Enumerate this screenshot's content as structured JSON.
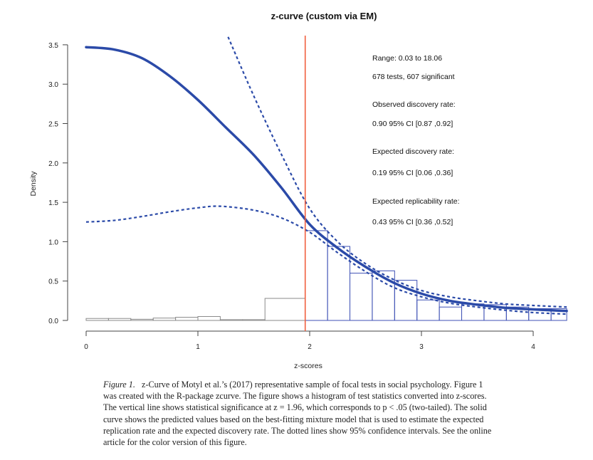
{
  "chart_data": {
    "type": "bar",
    "title": "z-curve (custom via EM)",
    "xlabel": "z-scores",
    "ylabel": "Density",
    "xlim": [
      0,
      4.3
    ],
    "ylim": [
      0,
      3.5
    ],
    "xticks": [
      "0",
      "1",
      "2",
      "3",
      "4"
    ],
    "yticks": [
      "0.0",
      "0.5",
      "1.0",
      "1.5",
      "2.0",
      "2.5",
      "3.0",
      "3.5"
    ],
    "grid": false,
    "significance_line": {
      "z": 1.96,
      "color": "#f0603f"
    },
    "histogram_nonsignificant": {
      "color": "#8a8a8a",
      "bins": [
        [
          0,
          0.2
        ],
        [
          0.2,
          0.4
        ],
        [
          0.4,
          0.6
        ],
        [
          0.6,
          0.8
        ],
        [
          0.8,
          1.0
        ],
        [
          1.0,
          1.2
        ],
        [
          1.2,
          1.4
        ],
        [
          1.4,
          1.6
        ],
        [
          1.6,
          1.96
        ]
      ],
      "values": [
        0.025,
        0.025,
        0.015,
        0.03,
        0.04,
        0.05,
        0.01,
        0.01,
        0.28
      ]
    },
    "histogram_significant": {
      "color": "#3f51b5",
      "bins": [
        [
          1.96,
          2.16
        ],
        [
          2.16,
          2.36
        ],
        [
          2.36,
          2.56
        ],
        [
          2.56,
          2.76
        ],
        [
          2.76,
          2.96
        ],
        [
          2.96,
          3.16
        ],
        [
          3.16,
          3.36
        ],
        [
          3.36,
          3.56
        ],
        [
          3.56,
          3.76
        ],
        [
          3.76,
          3.96
        ],
        [
          3.96,
          4.16
        ],
        [
          4.16,
          4.36
        ]
      ],
      "values": [
        1.14,
        0.94,
        0.6,
        0.63,
        0.51,
        0.26,
        0.17,
        0.21,
        0.2,
        0.17,
        0.15,
        0.15
      ]
    },
    "series": [
      {
        "style": "solid",
        "color": "#2b4aa8",
        "x": [
          0,
          0.25,
          0.5,
          0.75,
          1.0,
          1.25,
          1.5,
          1.75,
          2.0,
          2.25,
          2.5,
          2.75,
          3.0,
          3.25,
          3.5,
          3.75,
          4.0,
          4.3
        ],
        "y": [
          3.47,
          3.44,
          3.33,
          3.1,
          2.8,
          2.45,
          2.1,
          1.68,
          1.22,
          0.92,
          0.68,
          0.48,
          0.34,
          0.25,
          0.2,
          0.16,
          0.14,
          0.12
        ]
      },
      {
        "style": "dotted",
        "color": "#2b4aa8",
        "x": [
          1.27,
          1.5,
          1.75,
          2.0,
          2.25,
          2.5,
          2.75,
          3.0,
          3.25,
          3.5,
          3.75,
          4.0,
          4.3
        ],
        "y": [
          3.6,
          2.85,
          2.1,
          1.42,
          1.0,
          0.72,
          0.52,
          0.38,
          0.3,
          0.25,
          0.21,
          0.19,
          0.17
        ]
      },
      {
        "style": "dotted",
        "color": "#2b4aa8",
        "x": [
          0,
          0.25,
          0.5,
          0.75,
          1.0,
          1.2,
          1.5,
          1.75,
          2.0,
          2.25,
          2.5,
          2.75,
          3.0,
          3.25,
          3.5,
          3.75,
          4.0,
          4.3
        ],
        "y": [
          1.25,
          1.27,
          1.32,
          1.38,
          1.43,
          1.45,
          1.4,
          1.3,
          1.12,
          0.86,
          0.62,
          0.42,
          0.3,
          0.22,
          0.17,
          0.13,
          0.1,
          0.08
        ]
      }
    ],
    "annotations": [
      "Range: 0.03 to 18.06",
      "678 tests, 607 significant",
      "Observed discovery rate:",
      "0.90  95% CI [0.87 ,0.92]",
      "Expected discovery rate:",
      "0.19  95% CI [0.06 ,0.36]",
      "Expected replicability rate:",
      "0.43  95% CI [0.36 ,0.52]"
    ]
  },
  "caption": {
    "label": "Figure 1.",
    "lines": [
      "z-Curve of Motyl et al.’s (2017) representative sample of focal tests in social psychology. Figure 1",
      "was created with the R-package zcurve. The figure shows a histogram of test statistics converted into z-scores.",
      "The vertical line shows statistical significance at z = 1.96, which corresponds to p < .05 (two-tailed). The solid",
      "curve shows the predicted values based on the best-fitting mixture model that is used to estimate the expected",
      "replication rate and the expected discovery rate. The dotted lines show 95% confidence intervals. See the online",
      "article for the color version of this figure."
    ]
  }
}
